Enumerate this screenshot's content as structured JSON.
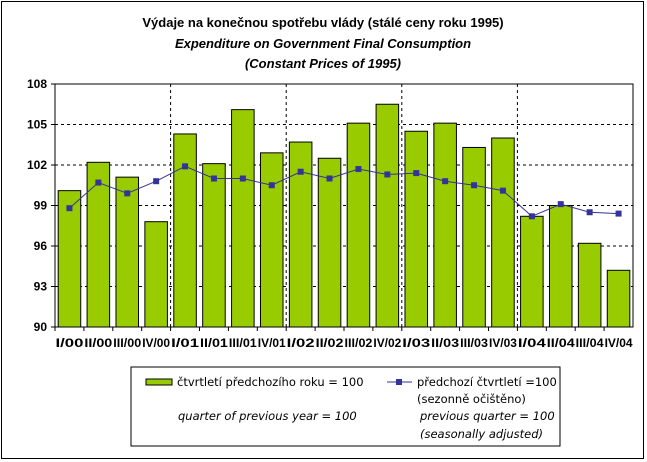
{
  "chart_data": {
    "type": "bar",
    "title": "Výdaje na konečnou spotřebu vlády (stálé ceny roku 1995)",
    "subtitle_1": "Expenditure on Government Final Consumption",
    "subtitle_2": "(Constant Prices of 1995)",
    "xlabel": "",
    "ylabel": "",
    "ylim": [
      90,
      108
    ],
    "yticks": [
      "90",
      "93",
      "96",
      "99",
      "102",
      "105",
      "108"
    ],
    "grid": true,
    "legend_position": "bottom",
    "categories": [
      "I/00",
      "II/00",
      "III/00",
      "IV/00",
      "I/01",
      "II/01",
      "III/01",
      "IV/01",
      "I/02",
      "II/02",
      "III/02",
      "IV/02",
      "I/03",
      "II/03",
      "III/03",
      "IV/03",
      "I/04",
      "II/04",
      "III/04",
      "IV/04"
    ],
    "series": [
      {
        "name": "čtvrtletí předchozího roku = 100",
        "name_en": "quarter of previous year = 100",
        "type": "bar",
        "color": "#99CC00",
        "values": [
          100.1,
          102.2,
          101.1,
          97.8,
          104.3,
          102.1,
          106.1,
          102.9,
          103.7,
          102.5,
          105.1,
          106.5,
          104.5,
          105.1,
          103.3,
          104.0,
          98.2,
          99.0,
          96.2,
          94.2
        ]
      },
      {
        "name": "předchozí čtvrtletí =100",
        "name_2": "(sezonně očištěno)",
        "name_en": "previous quarter = 100",
        "name_en_2": "(seasonally adjusted)",
        "type": "line",
        "color": "#333399",
        "values": [
          98.8,
          100.7,
          99.9,
          100.8,
          101.9,
          101.0,
          101.0,
          100.5,
          101.5,
          101.0,
          101.7,
          101.3,
          101.4,
          100.8,
          100.5,
          100.1,
          98.2,
          99.1,
          98.5,
          98.4
        ]
      }
    ]
  }
}
